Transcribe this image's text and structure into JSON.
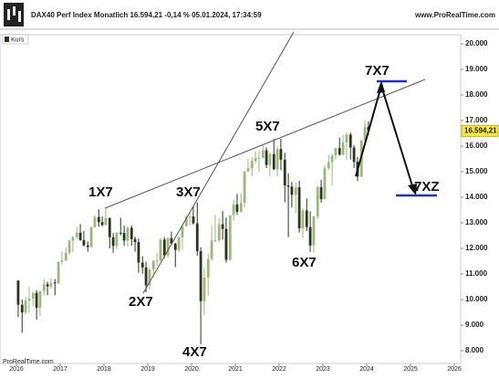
{
  "chart_data": {
    "type": "candlestick",
    "header": "DAX40 Perf Index Monatlich 16.594,21 -0,14 % 05.01.2024, 17:34:59",
    "source_top": "www.ProRealTime.com",
    "source_bottom": "ProRealTime.com",
    "legend": "Kurs",
    "up_color": "#9db77a",
    "down_color": "#2c3320",
    "last_value": {
      "value": 16594.21,
      "label": "16.594,21"
    },
    "annotations": [
      "1X7",
      "2X7",
      "3X7",
      "4X7",
      "5X7",
      "6X7",
      "7X7",
      "7XZ"
    ],
    "xlim": [
      2015.625,
      2026.146
    ],
    "xticks": [
      2016,
      2017,
      2018,
      2019,
      2020,
      2021,
      2022,
      2023,
      2024,
      2025,
      2026
    ],
    "ylim": [
      7500,
      20357
    ],
    "yticks": [
      {
        "value": 8000,
        "label": "8.000"
      },
      {
        "value": 9000,
        "label": "9.000"
      },
      {
        "value": 10000,
        "label": "10.000"
      },
      {
        "value": 11000,
        "label": "11.000"
      },
      {
        "value": 12000,
        "label": "12.000"
      },
      {
        "value": 13000,
        "label": "13.000"
      },
      {
        "value": 14000,
        "label": "14.000"
      },
      {
        "value": 15000,
        "label": "15.000"
      },
      {
        "value": 16000,
        "label": "16.000"
      },
      {
        "value": 17000,
        "label": "17.000"
      },
      {
        "value": 18000,
        "label": "18.000"
      },
      {
        "value": 19000,
        "label": "19.000"
      },
      {
        "value": 20000,
        "label": "20.000"
      }
    ],
    "x": [
      2016.04,
      2016.13,
      2016.21,
      2016.29,
      2016.38,
      2016.46,
      2016.54,
      2016.63,
      2016.71,
      2016.79,
      2016.88,
      2016.96,
      2017.04,
      2017.13,
      2017.21,
      2017.29,
      2017.38,
      2017.46,
      2017.54,
      2017.63,
      2017.71,
      2017.79,
      2017.88,
      2017.96,
      2018.04,
      2018.13,
      2018.21,
      2018.29,
      2018.38,
      2018.46,
      2018.54,
      2018.63,
      2018.71,
      2018.79,
      2018.88,
      2018.96,
      2019.04,
      2019.13,
      2019.21,
      2019.29,
      2019.38,
      2019.46,
      2019.54,
      2019.63,
      2019.71,
      2019.79,
      2019.88,
      2019.96,
      2020.04,
      2020.13,
      2020.21,
      2020.29,
      2020.38,
      2020.46,
      2020.54,
      2020.63,
      2020.71,
      2020.79,
      2020.88,
      2020.96,
      2021.04,
      2021.13,
      2021.21,
      2021.29,
      2021.38,
      2021.46,
      2021.54,
      2021.63,
      2021.71,
      2021.79,
      2021.88,
      2021.96,
      2022.04,
      2022.13,
      2022.21,
      2022.29,
      2022.38,
      2022.46,
      2022.54,
      2022.63,
      2022.71,
      2022.79,
      2022.88,
      2022.96,
      2023.04,
      2023.13,
      2023.21,
      2023.29,
      2023.38,
      2023.46,
      2023.54,
      2023.63,
      2023.71,
      2023.79,
      2023.88,
      2023.96,
      2024.04
    ],
    "open": [
      10743,
      9798,
      9495,
      9965,
      10039,
      10263,
      9680,
      10337,
      10593,
      10511,
      10665,
      10640,
      11481,
      11535,
      11834,
      12313,
      12438,
      12615,
      12325,
      12118,
      12056,
      12829,
      13230,
      13024,
      12918,
      13189,
      12436,
      12097,
      12612,
      12605,
      12306,
      12806,
      12364,
      12247,
      11447,
      11257,
      10559,
      11173,
      11516,
      11526,
      12344,
      11727,
      12399,
      12189,
      11939,
      12428,
      12867,
      13236,
      13249,
      12982,
      11890,
      9936,
      10862,
      11587,
      12311,
      12313,
      12945,
      12761,
      11556,
      13291,
      13719,
      13433,
      13786,
      15008,
      15136,
      15421,
      15531,
      15544,
      15835,
      15261,
      15688,
      15100,
      15885,
      15471,
      14461,
      14415,
      14098,
      14388,
      12784,
      13484,
      12835,
      12114,
      13253,
      14397,
      13924,
      15128,
      15365,
      15629,
      15922,
      15664,
      16148,
      16447,
      15947,
      15386,
      14810,
      16215,
      16752
    ],
    "high": [
      10750,
      10000,
      10100,
      10490,
      10300,
      10370,
      10340,
      10800,
      10700,
      10830,
      10800,
      11480,
      11890,
      12030,
      12320,
      12490,
      12840,
      12950,
      12680,
      12270,
      12840,
      13300,
      13530,
      13250,
      13600,
      13200,
      12600,
      12640,
      13200,
      12890,
      12880,
      12890,
      12460,
      12390,
      11700,
      11480,
      11250,
      11550,
      11820,
      12400,
      12440,
      12440,
      12660,
      12220,
      12490,
      12960,
      13300,
      13430,
      13640,
      13800,
      12040,
      11240,
      11790,
      12910,
      13310,
      13190,
      13460,
      13210,
      13300,
      13900,
      14130,
      14170,
      15030,
      15500,
      15570,
      15800,
      15810,
      16030,
      15950,
      15750,
      16290,
      16000,
      16290,
      15740,
      14930,
      14600,
      14580,
      14640,
      13580,
      13950,
      13450,
      13280,
      14460,
      14680,
      15270,
      15660,
      15710,
      15920,
      16330,
      16430,
      16530,
      16530,
      16040,
      15580,
      16240,
      17000,
      16970
    ],
    "low": [
      9310,
      8699,
      9420,
      9480,
      9735,
      9214,
      9370,
      10160,
      10170,
      10420,
      10170,
      10600,
      11370,
      11500,
      11750,
      11850,
      12360,
      12290,
      12080,
      11870,
      12030,
      12820,
      12850,
      12860,
      12900,
      12000,
      11830,
      11960,
      12510,
      12100,
      12080,
      12100,
      11870,
      11050,
      11010,
      10280,
      10390,
      10870,
      11300,
      11500,
      11620,
      11640,
      12150,
      11270,
      11850,
      11950,
      12850,
      12900,
      12930,
      11720,
      8256,
      9400,
      10160,
      11510,
      12240,
      12250,
      12340,
      11450,
      11530,
      13070,
      13310,
      13400,
      13600,
      14990,
      14820,
      15300,
      15000,
      15520,
      15140,
      14820,
      15050,
      14830,
      15060,
      13800,
      12440,
      13610,
      13380,
      12620,
      12390,
      12680,
      11860,
      11830,
      13130,
      13790,
      13920,
      15070,
      14460,
      15480,
      15630,
      15630,
      15450,
      15470,
      15140,
      14630,
      14790,
      16150,
      16430
    ],
    "close": [
      9798,
      9495,
      9965,
      10039,
      10263,
      9680,
      10337,
      10593,
      10511,
      10665,
      10640,
      11481,
      11535,
      11834,
      12313,
      12438,
      12615,
      12325,
      12118,
      12056,
      12829,
      13230,
      13024,
      12918,
      13189,
      12436,
      12097,
      12612,
      12605,
      12306,
      12806,
      12364,
      12247,
      11447,
      11257,
      10559,
      11173,
      11516,
      11526,
      12344,
      11727,
      12399,
      12189,
      11939,
      12428,
      12867,
      13236,
      13249,
      12982,
      11890,
      9936,
      10862,
      11587,
      12311,
      12313,
      12945,
      12761,
      11556,
      13291,
      13719,
      13433,
      13786,
      15008,
      15136,
      15421,
      15531,
      15544,
      15835,
      15261,
      15688,
      15100,
      15885,
      15471,
      14461,
      14415,
      14098,
      14388,
      12784,
      13484,
      12835,
      12114,
      13253,
      14397,
      13924,
      15128,
      15365,
      15629,
      15922,
      15664,
      16148,
      16447,
      15947,
      15386,
      14810,
      16215,
      16752,
      16594
    ]
  }
}
